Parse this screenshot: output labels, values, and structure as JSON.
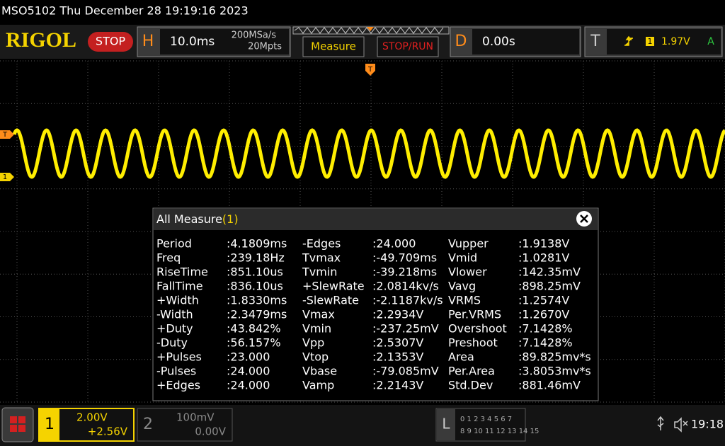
{
  "title_bar": "MSO5102  Thu December 28 19:19:16 2023",
  "toolbar": {
    "logo": "RIGOL",
    "status": "STOP",
    "horizontal": {
      "label": "H",
      "timebase": "10.0ms",
      "sample_rate": "200MSa/s",
      "memory_depth": "20Mpts"
    },
    "measure_button": "Measure",
    "stop_run_button": "STOP/RUN",
    "delay": {
      "label": "D",
      "value": "0.00s"
    },
    "trigger": {
      "label": "T",
      "source": "1",
      "level": "1.97V",
      "mode": "A"
    }
  },
  "markers": {
    "trigger_position": "T",
    "trigger_level": "T",
    "channel1": "1"
  },
  "measure_panel": {
    "title": "All Measure",
    "channel": "(1)",
    "rows": [
      [
        "Period",
        ":4.1809ms",
        "-Edges",
        ":24.000",
        "Vupper",
        ":1.9138V"
      ],
      [
        "Freq",
        ":239.18Hz",
        "Tvmax",
        ":-49.709ms",
        "Vmid",
        ":1.0281V"
      ],
      [
        "RiseTime",
        ":851.10us",
        "Tvmin",
        ":-39.218ms",
        "Vlower",
        ":142.35mV"
      ],
      [
        "FallTime",
        ":836.10us",
        "+SlewRate",
        ":2.0814kv/s",
        "Vavg",
        ":898.25mV"
      ],
      [
        "+Width",
        ":1.8330ms",
        "-SlewRate",
        ":-2.1187kv/s",
        "VRMS",
        ":1.2574V"
      ],
      [
        "-Width",
        ":2.3479ms",
        "Vmax",
        ":2.2934V",
        "Per.VRMS",
        ":1.2670V"
      ],
      [
        "+Duty",
        ":43.842%",
        "Vmin",
        ":-237.25mV",
        "Overshoot",
        ":7.1428%"
      ],
      [
        "-Duty",
        ":56.157%",
        "Vpp",
        ":2.5307V",
        "Preshoot",
        ":7.1428%"
      ],
      [
        "+Pulses",
        ":23.000",
        "Vtop",
        ":2.1353V",
        "Area",
        ":89.825mv*s"
      ],
      [
        "-Pulses",
        ":24.000",
        "Vbase",
        ":-79.085mV",
        "Per.Area",
        ":3.8053mv*s"
      ],
      [
        "+Edges",
        ":24.000",
        "Vamp",
        ":2.2143V",
        "Std.Dev",
        ":881.46mV"
      ]
    ]
  },
  "bottom_bar": {
    "channel1": {
      "number": "1",
      "scale": "2.00V",
      "offset": "+2.56V"
    },
    "channel2": {
      "number": "2",
      "scale": "100mV",
      "offset": "0.00V"
    },
    "logic": {
      "label": "L",
      "row1": "0 1 2 3  4 5 6 7",
      "row2": "8 9 10 11 12 13 14 15"
    },
    "time": "19:18"
  }
}
